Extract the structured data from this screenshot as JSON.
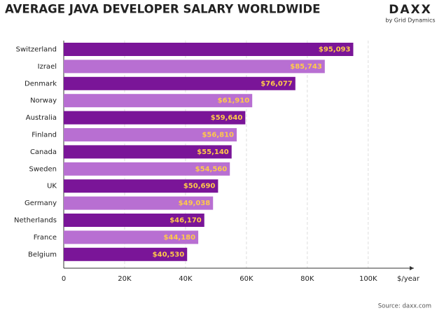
{
  "chart_data": {
    "type": "hbar",
    "title": "AVERAGE JAVA DEVELOPER SALARY WORLDWIDE",
    "categories": [
      "Switzerland",
      "Izrael",
      "Denmark",
      "Norway",
      "Australia",
      "Finland",
      "Canada",
      "Sweden",
      "UK",
      "Germany",
      "Netherlands",
      "France",
      "Belgium"
    ],
    "values": [
      95093,
      85743,
      76077,
      61910,
      59640,
      56810,
      55140,
      54560,
      50690,
      49038,
      46170,
      44180,
      40530
    ],
    "value_labels": [
      "$95,093",
      "$85,743",
      "$76,077",
      "$61,910",
      "$59,640",
      "$56,810",
      "$55,140",
      "$54,560",
      "$50,690",
      "$49,038",
      "$46,170",
      "$44,180",
      "$40,530"
    ],
    "colors": [
      "#7a1598",
      "#b86fd2",
      "#7a1598",
      "#b86fd2",
      "#7a1598",
      "#b86fd2",
      "#7a1598",
      "#b86fd2",
      "#7a1598",
      "#b86fd2",
      "#7a1598",
      "#b86fd2",
      "#7a1598"
    ],
    "value_label_color": "#ffc94a",
    "xlabel": "$/year",
    "xlim": [
      0,
      115000
    ],
    "xticks": [
      0,
      {
        "value": 20000,
        "label": "20K"
      },
      {
        "value": 40000,
        "label": "40K"
      },
      {
        "value": 60000,
        "label": "60K"
      },
      {
        "value": 80000,
        "label": "80K"
      },
      {
        "value": 100000,
        "label": "100K"
      }
    ],
    "grid": true
  },
  "logo": {
    "name": "DAXX",
    "tagline": "by Grid Dynamics"
  },
  "source": "Source: daxx.com"
}
